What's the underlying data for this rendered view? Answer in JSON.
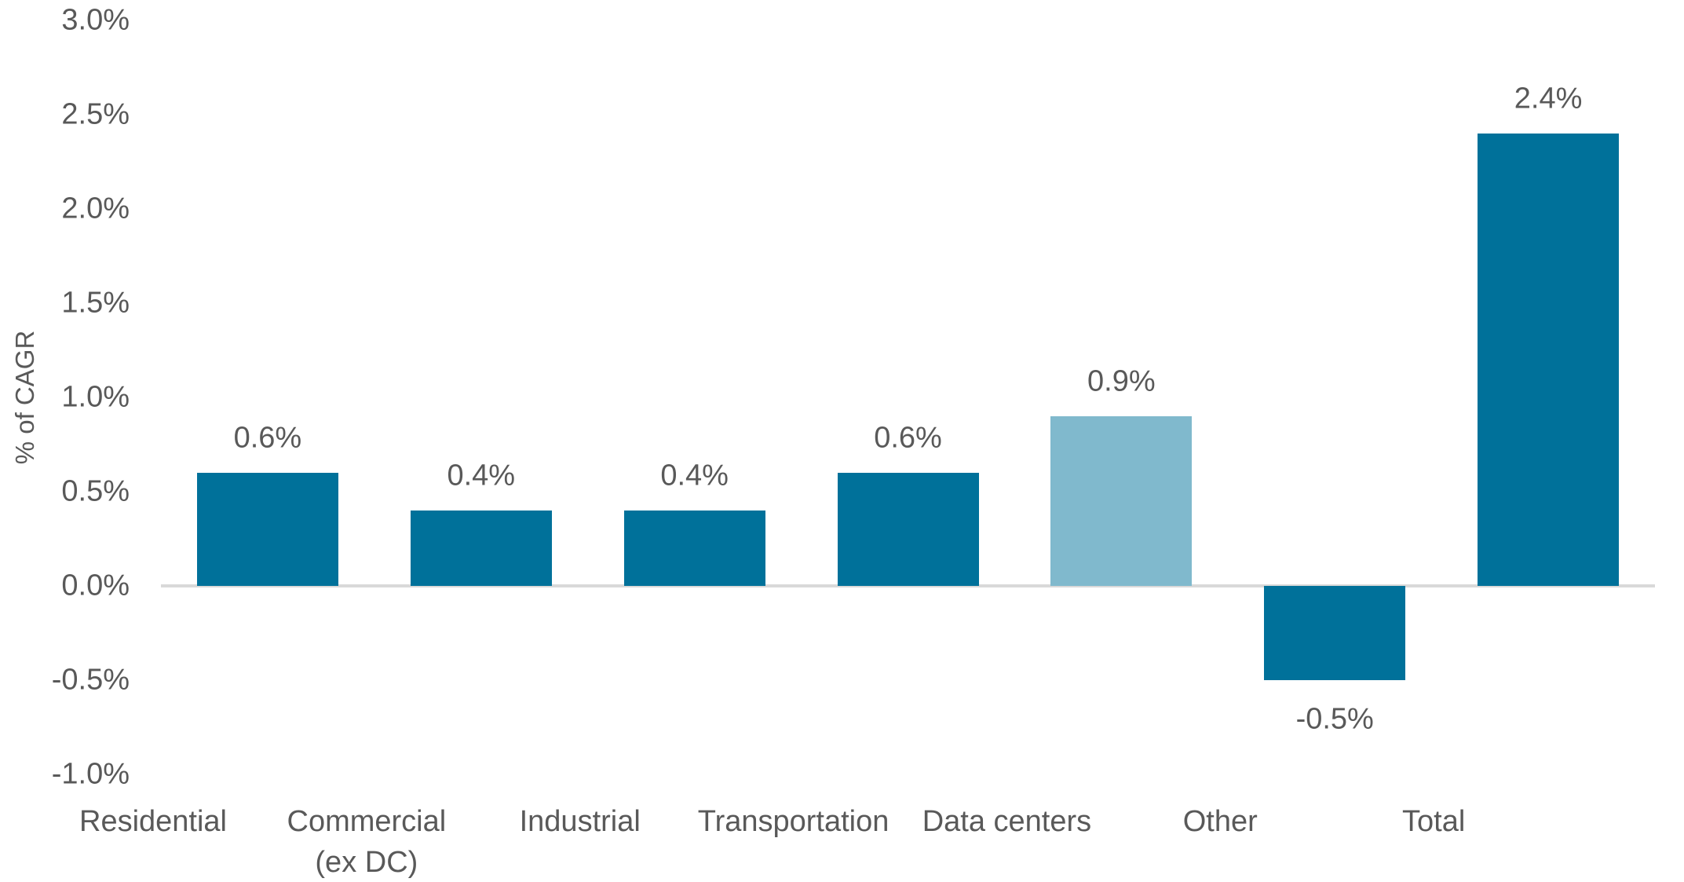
{
  "chart_data": {
    "type": "bar",
    "title": "",
    "xlabel": "",
    "ylabel": "% of CAGR",
    "categories": [
      "Residential",
      "Commercial\n(ex DC)",
      "Industrial",
      "Transportation",
      "Data centers",
      "Other",
      "Total"
    ],
    "values": [
      0.6,
      0.4,
      0.4,
      0.6,
      0.9,
      -0.5,
      2.4
    ],
    "value_labels": [
      "0.6%",
      "0.4%",
      "0.4%",
      "0.6%",
      "0.9%",
      "-0.5%",
      "2.4%"
    ],
    "bar_colors": [
      "#00719a",
      "#00719a",
      "#00719a",
      "#00719a",
      "#80b9cd",
      "#00719a",
      "#00719a"
    ],
    "ylim": [
      -1.0,
      3.0
    ],
    "ytick_step": 0.5,
    "yticks": [
      {
        "label": "3.0%",
        "value": 3.0
      },
      {
        "label": "2.5%",
        "value": 2.5
      },
      {
        "label": "2.0%",
        "value": 2.0
      },
      {
        "label": "1.5%",
        "value": 1.5
      },
      {
        "label": "1.0%",
        "value": 1.0
      },
      {
        "label": "0.5%",
        "value": 0.5
      },
      {
        "label": "0.0%",
        "value": 0.0
      },
      {
        "label": "-0.5%",
        "value": -0.5
      },
      {
        "label": "-1.0%",
        "value": -1.0
      }
    ],
    "grid": false,
    "legend": null,
    "colors": {
      "bar_primary": "#00719a",
      "bar_highlight": "#80b9cd",
      "axis_line": "#d9d9d9",
      "text": "#595959"
    }
  }
}
